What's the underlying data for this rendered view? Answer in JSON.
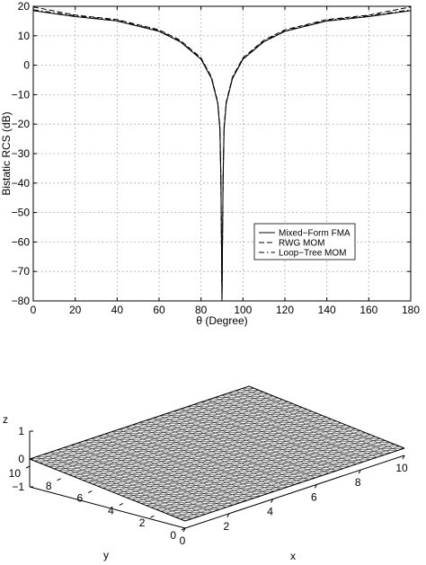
{
  "chart_data": [
    {
      "type": "line",
      "title": "",
      "xlabel": "θ (Degree)",
      "ylabel": "Bistatic RCS (dB)",
      "xlim": [
        0,
        180
      ],
      "ylim": [
        -80,
        20
      ],
      "xticks": [
        "0",
        "20",
        "40",
        "60",
        "80",
        "100",
        "120",
        "140",
        "160",
        "180"
      ],
      "yticks": [
        "20",
        "10",
        "0",
        "−10",
        "−20",
        "−30",
        "−40",
        "−50",
        "−60",
        "−70",
        "−80"
      ],
      "grid": true,
      "legend_position": "lower-right",
      "x": [
        0,
        20,
        40,
        60,
        70,
        80,
        85,
        88,
        89,
        89.5,
        90,
        90.5,
        91,
        92,
        95,
        100,
        110,
        120,
        140,
        160,
        180
      ],
      "series": [
        {
          "name": "Mixed−Form FMA",
          "style": "solid",
          "values": [
            18.5,
            16.5,
            15,
            11.5,
            8,
            2,
            -4.5,
            -13,
            -22,
            -40,
            -80,
            -40,
            -22,
            -13,
            -4.5,
            2,
            8,
            11.5,
            15,
            16.5,
            18.5
          ]
        },
        {
          "name": "RWG MOM",
          "style": "dashed",
          "values": [
            19.8,
            17,
            15.5,
            12,
            8.5,
            2.5,
            -4,
            -12.5,
            -21,
            -38,
            -80,
            -38,
            -21,
            -12.5,
            -4,
            2.5,
            8.5,
            12,
            15.5,
            17,
            19.8
          ]
        },
        {
          "name": "Loop−Tree MOM",
          "style": "dashdot",
          "values": [
            18.8,
            16.8,
            15.2,
            11.7,
            8.2,
            2.2,
            -4.3,
            -12.8,
            -21.5,
            -39,
            -80,
            -39,
            -21.5,
            -12.8,
            -4.3,
            2.2,
            8.2,
            11.7,
            15.2,
            16.8,
            18.8
          ]
        }
      ]
    },
    {
      "type": "surface-mesh",
      "title": "",
      "xlabel": "x",
      "ylabel": "y",
      "zlabel": "z",
      "xlim": [
        0,
        10
      ],
      "ylim": [
        0,
        10
      ],
      "zlim": [
        -1,
        1
      ],
      "xticks": [
        "0",
        "2",
        "4",
        "6",
        "8",
        "10"
      ],
      "yticks": [
        "0",
        "2",
        "4",
        "6",
        "8",
        "10"
      ],
      "zticks": [
        "1",
        "0",
        "−1"
      ],
      "mesh": "flat triangulated plate at z = 0"
    }
  ],
  "colors": {
    "line": "#000000",
    "grid": "#9a9a9a",
    "background": "#ffffff"
  }
}
